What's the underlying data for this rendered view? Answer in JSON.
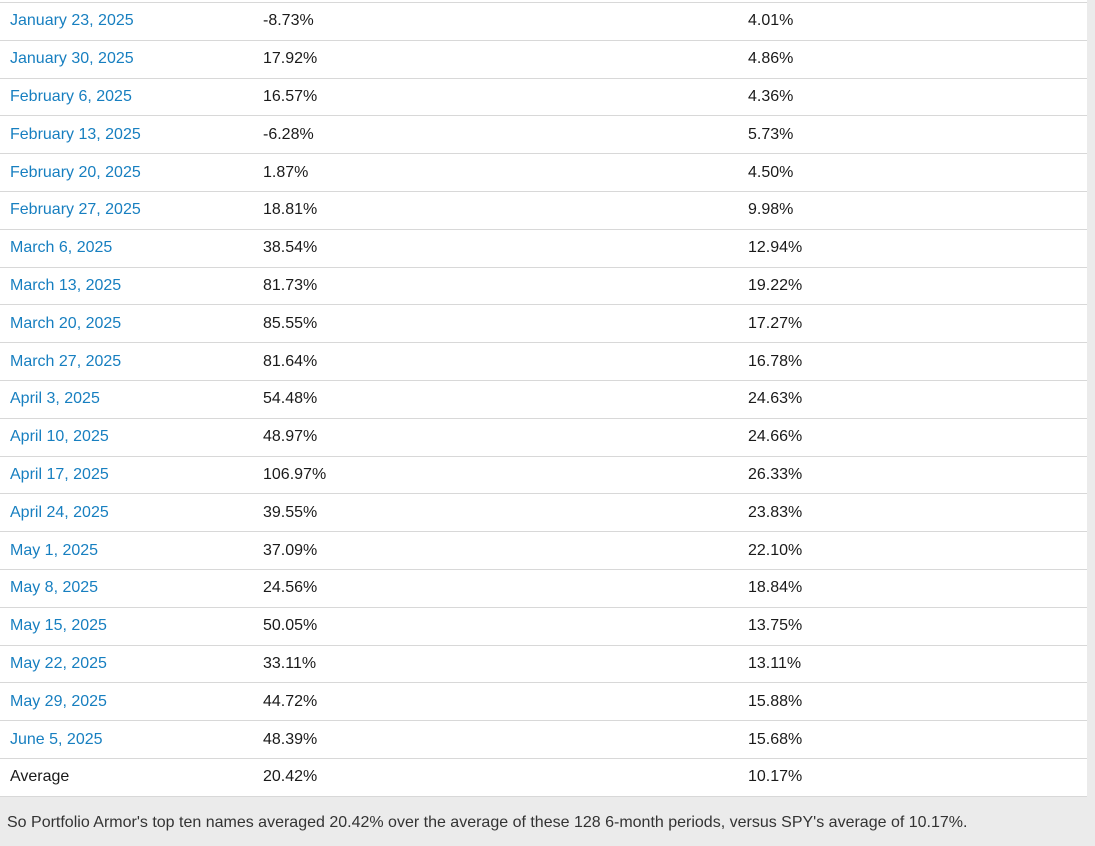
{
  "colors": {
    "page_background": "#ebebeb",
    "table_background": "#ffffff",
    "row_border": "#d8d8d8",
    "link_blue": "#177fc0",
    "text_dark": "#1a1a1a",
    "footer_text": "#333333"
  },
  "table": {
    "rows": [
      {
        "date": "January 23, 2025",
        "portfolio_return": "-8.73%",
        "spy_return": "4.01%",
        "link": true
      },
      {
        "date": "January 30, 2025",
        "portfolio_return": "17.92%",
        "spy_return": "4.86%",
        "link": true
      },
      {
        "date": "February 6, 2025",
        "portfolio_return": "16.57%",
        "spy_return": "4.36%",
        "link": true
      },
      {
        "date": "February 13, 2025",
        "portfolio_return": "-6.28%",
        "spy_return": "5.73%",
        "link": true
      },
      {
        "date": "February 20, 2025",
        "portfolio_return": "1.87%",
        "spy_return": "4.50%",
        "link": true
      },
      {
        "date": "February 27, 2025",
        "portfolio_return": "18.81%",
        "spy_return": "9.98%",
        "link": true
      },
      {
        "date": "March 6, 2025",
        "portfolio_return": "38.54%",
        "spy_return": "12.94%",
        "link": true
      },
      {
        "date": "March 13, 2025",
        "portfolio_return": "81.73%",
        "spy_return": "19.22%",
        "link": true
      },
      {
        "date": "March 20, 2025",
        "portfolio_return": "85.55%",
        "spy_return": "17.27%",
        "link": true
      },
      {
        "date": "March 27, 2025",
        "portfolio_return": "81.64%",
        "spy_return": "16.78%",
        "link": true
      },
      {
        "date": "April 3, 2025",
        "portfolio_return": "54.48%",
        "spy_return": "24.63%",
        "link": true
      },
      {
        "date": "April 10, 2025",
        "portfolio_return": "48.97%",
        "spy_return": "24.66%",
        "link": true
      },
      {
        "date": "April 17, 2025",
        "portfolio_return": "106.97%",
        "spy_return": "26.33%",
        "link": true
      },
      {
        "date": "April 24, 2025",
        "portfolio_return": "39.55%",
        "spy_return": "23.83%",
        "link": true
      },
      {
        "date": "May 1, 2025",
        "portfolio_return": "37.09%",
        "spy_return": "22.10%",
        "link": true
      },
      {
        "date": "May 8, 2025",
        "portfolio_return": "24.56%",
        "spy_return": "18.84%",
        "link": true
      },
      {
        "date": "May 15, 2025",
        "portfolio_return": "50.05%",
        "spy_return": "13.75%",
        "link": true
      },
      {
        "date": "May 22, 2025",
        "portfolio_return": "33.11%",
        "spy_return": "13.11%",
        "link": true
      },
      {
        "date": "May 29, 2025",
        "portfolio_return": "44.72%",
        "spy_return": "15.88%",
        "link": true
      },
      {
        "date": "June 5, 2025",
        "portfolio_return": "48.39%",
        "spy_return": "15.68%",
        "link": true
      },
      {
        "date": "Average",
        "portfolio_return": "20.42%",
        "spy_return": "10.17%",
        "link": false
      }
    ]
  },
  "footer": {
    "text": "So Portfolio Armor's top ten names averaged 20.42% over the average of these 128 6-month periods, versus SPY's average of 10.17%."
  }
}
